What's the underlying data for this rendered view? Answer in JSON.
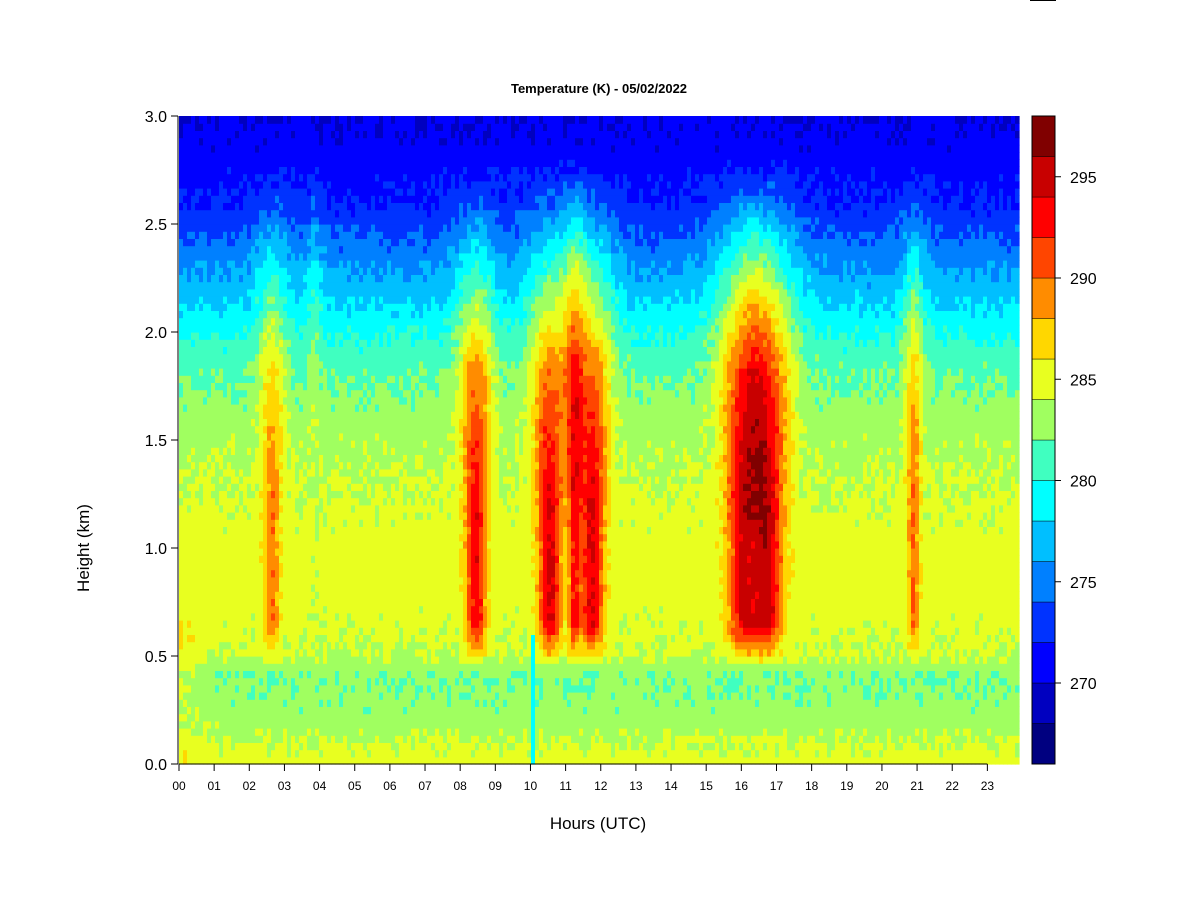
{
  "chart_data": {
    "type": "heatmap",
    "title": "Temperature (K) - 05/02/2022",
    "xlabel": "Hours (UTC)",
    "ylabel": "Height (km)",
    "x_ticks": [
      "00",
      "01",
      "02",
      "03",
      "04",
      "05",
      "06",
      "07",
      "08",
      "09",
      "10",
      "11",
      "12",
      "13",
      "14",
      "15",
      "16",
      "17",
      "18",
      "19",
      "20",
      "21",
      "22",
      "23"
    ],
    "xlim": [
      0,
      23.9
    ],
    "ylim": [
      0,
      3.0
    ],
    "y_ticks": [
      "0.0",
      "0.5",
      "1.0",
      "1.5",
      "2.0",
      "2.5",
      "3.0"
    ],
    "y_tick_values": [
      0,
      0.5,
      1.0,
      1.5,
      2.0,
      2.5,
      3.0
    ],
    "colorbar": {
      "levels": [
        266,
        268,
        270,
        272,
        274,
        276,
        278,
        280,
        282,
        284,
        286,
        288,
        290,
        292,
        294,
        296,
        298
      ],
      "colors": [
        "#000080",
        "#0000c0",
        "#0000ff",
        "#0033ff",
        "#0080ff",
        "#00bfff",
        "#00ffff",
        "#40ffc0",
        "#a0ff60",
        "#e8ff20",
        "#ffd700",
        "#ff8c00",
        "#ff4500",
        "#ff0000",
        "#c80000",
        "#800000"
      ],
      "tick_labels": [
        "270",
        "275",
        "280",
        "285",
        "290",
        "295"
      ],
      "tick_values": [
        270,
        275,
        280,
        285,
        290,
        295
      ]
    },
    "profile": {
      "heights_km": [
        0.0,
        0.2,
        0.4,
        0.5,
        0.8,
        1.0,
        1.3,
        1.6,
        1.9,
        2.2,
        2.6,
        3.0
      ],
      "base_temperature_K": [
        285,
        283,
        282,
        284,
        285,
        285,
        284,
        283,
        281,
        277,
        272,
        270
      ]
    },
    "warm_plumes": [
      {
        "hour": 2.65,
        "peak_K": 289.5,
        "half_width_h": 0.22
      },
      {
        "hour": 3.85,
        "peak_K": 284.0,
        "half_width_h": 0.12
      },
      {
        "hour": 8.45,
        "peak_K": 293.5,
        "half_width_h": 0.28
      },
      {
        "hour": 10.55,
        "peak_K": 294.5,
        "half_width_h": 0.32
      },
      {
        "hour": 11.25,
        "peak_K": 292.0,
        "half_width_h": 0.16
      },
      {
        "hour": 11.75,
        "peak_K": 294.5,
        "half_width_h": 0.32
      },
      {
        "hour": 16.05,
        "peak_K": 294.0,
        "half_width_h": 0.42
      },
      {
        "hour": 16.75,
        "peak_K": 294.5,
        "half_width_h": 0.42
      },
      {
        "hour": 20.9,
        "peak_K": 290.0,
        "half_width_h": 0.16
      }
    ],
    "cold_streak": {
      "hour": 10.05,
      "height_range_km": [
        0.0,
        0.6
      ],
      "temperature_K": 278
    }
  }
}
